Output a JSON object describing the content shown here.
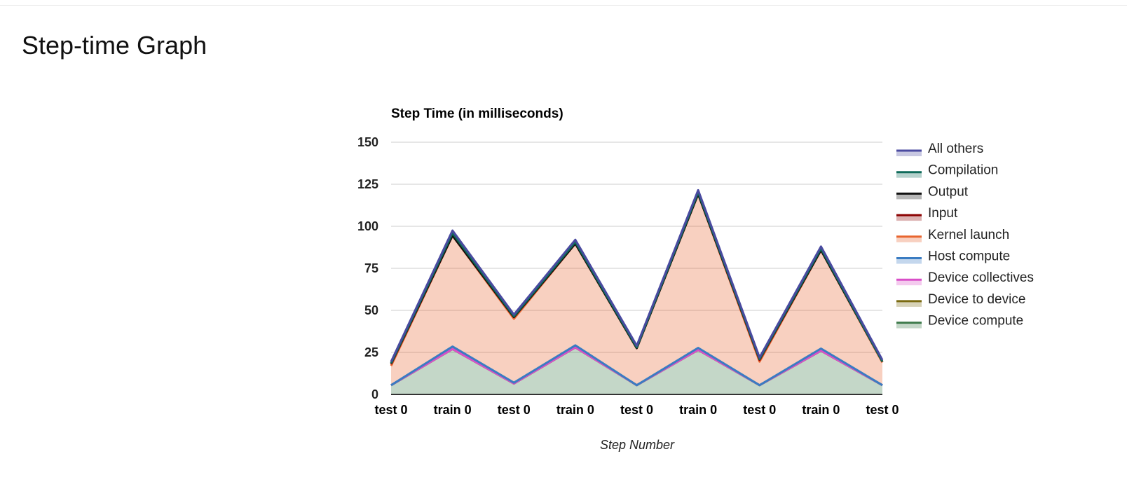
{
  "page": {
    "title": "Step-time Graph"
  },
  "chart_data": {
    "type": "area",
    "stacked": true,
    "title": "Step Time (in milliseconds)",
    "xlabel": "Step Number",
    "ylabel": "",
    "ylim": [
      0,
      150
    ],
    "yticks": [
      "0",
      "25",
      "50",
      "75",
      "100",
      "125",
      "150"
    ],
    "grid": true,
    "legend_position": "right",
    "categories": [
      "test 0",
      "train 0",
      "test 0",
      "train 0",
      "test 0",
      "train 0",
      "test 0",
      "train 0",
      "test 0"
    ],
    "series": [
      {
        "name": "Device compute",
        "color": "#3d7a4a",
        "values": [
          5.5,
          27,
          6.5,
          28,
          5.5,
          26.5,
          5.5,
          26,
          5.5
        ]
      },
      {
        "name": "Device to device",
        "color": "#7a6a10",
        "values": [
          0,
          0,
          0,
          0,
          0,
          0,
          0,
          0,
          0
        ]
      },
      {
        "name": "Device collectives",
        "color": "#d94fc8",
        "values": [
          0,
          0,
          0,
          0,
          0,
          0,
          0,
          0,
          0
        ]
      },
      {
        "name": "Host compute",
        "color": "#3a7cc2",
        "values": [
          0,
          1.5,
          0.5,
          1.2,
          0,
          1.2,
          0,
          1.3,
          0
        ]
      },
      {
        "name": "Kernel launch",
        "color": "#e8652e",
        "values": [
          11.5,
          66,
          38,
          60.5,
          22,
          91.5,
          14,
          58.5,
          13.5
        ]
      },
      {
        "name": "Input",
        "color": "#8b0000",
        "values": [
          1,
          0,
          1,
          0,
          0,
          0,
          1,
          0,
          0.5
        ]
      },
      {
        "name": "Output",
        "color": "#111111",
        "values": [
          0.5,
          0,
          0,
          0,
          0,
          0,
          0.5,
          0,
          0
        ]
      },
      {
        "name": "Compilation",
        "color": "#0e6b5a",
        "values": [
          0,
          1.5,
          0.5,
          1,
          0.5,
          1,
          0,
          1,
          0
        ]
      },
      {
        "name": "All others",
        "color": "#4a4aa0",
        "values": [
          1,
          1.5,
          1,
          1.3,
          1,
          1.3,
          1,
          1.2,
          1
        ]
      }
    ]
  }
}
